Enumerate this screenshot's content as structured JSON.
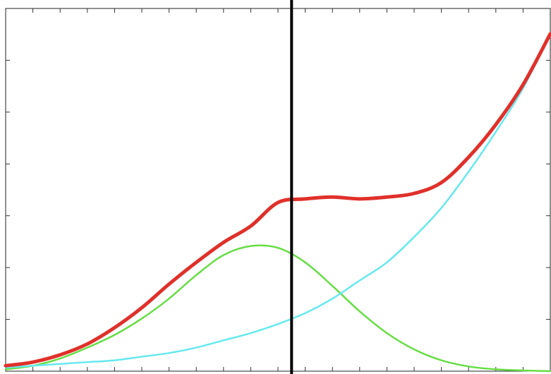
{
  "chart_data": {
    "type": "line",
    "title": "",
    "xlabel": "",
    "ylabel": "",
    "xlim": [
      0,
      1
    ],
    "ylim": [
      0,
      1
    ],
    "grid": false,
    "legend": "none",
    "x": [
      0.0,
      0.05,
      0.1,
      0.15,
      0.2,
      0.25,
      0.3,
      0.35,
      0.4,
      0.45,
      0.5,
      0.55,
      0.6,
      0.65,
      0.7,
      0.75,
      0.8,
      0.85,
      0.9,
      0.95,
      1.0
    ],
    "series": [
      {
        "color": "#e0302a",
        "values": [
          0.015,
          0.025,
          0.045,
          0.075,
          0.12,
          0.175,
          0.24,
          0.3,
          0.355,
          0.4,
          0.465,
          0.475,
          0.48,
          0.475,
          0.48,
          0.49,
          0.52,
          0.59,
          0.68,
          0.79,
          0.93
        ]
      },
      {
        "color": "#66dd44",
        "values": [
          0.005,
          0.015,
          0.035,
          0.065,
          0.1,
          0.145,
          0.2,
          0.265,
          0.32,
          0.345,
          0.34,
          0.3,
          0.235,
          0.165,
          0.105,
          0.06,
          0.03,
          0.013,
          0.005,
          0.002,
          0.0
        ]
      },
      {
        "color": "#66e8f0",
        "values": [
          0.01,
          0.015,
          0.02,
          0.025,
          0.03,
          0.04,
          0.05,
          0.065,
          0.085,
          0.105,
          0.13,
          0.16,
          0.2,
          0.25,
          0.3,
          0.37,
          0.45,
          0.55,
          0.66,
          0.78,
          0.93
        ]
      }
    ],
    "vline": {
      "x": 0.525,
      "color": "#000000"
    },
    "x_minor_ticks": 20,
    "y_minor_ticks": 7
  }
}
